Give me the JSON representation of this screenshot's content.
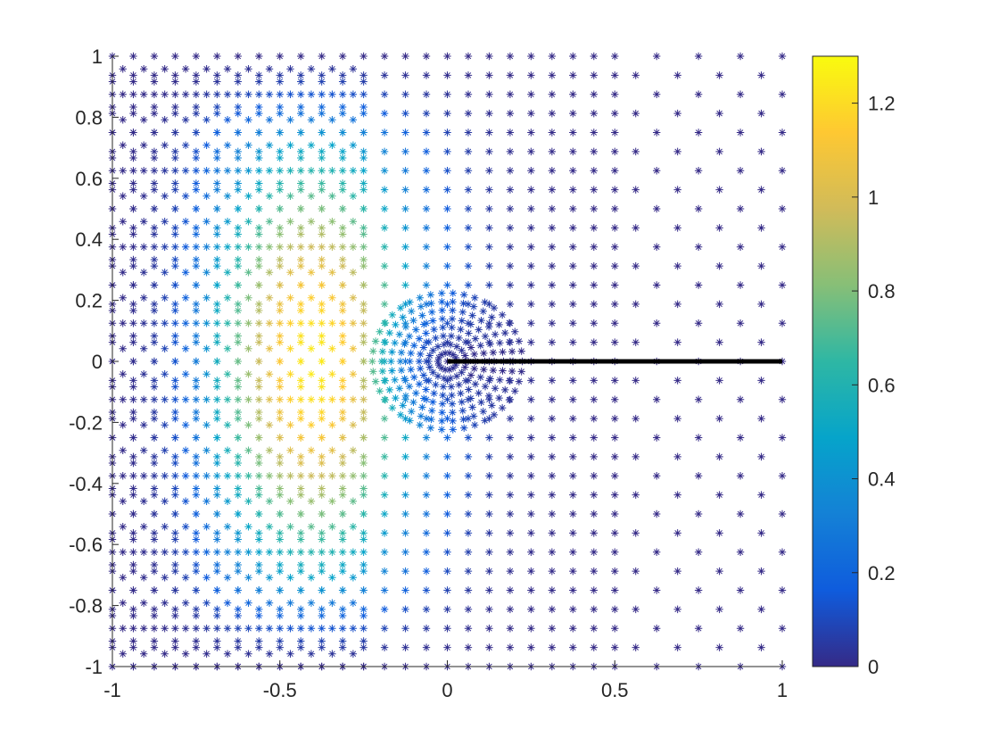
{
  "chart_data": {
    "type": "scatter",
    "title": "",
    "xlabel": "",
    "ylabel": "",
    "xlim": [
      -1,
      1
    ],
    "ylim": [
      -1,
      1
    ],
    "xticks": [
      -1,
      -0.5,
      0,
      0.5,
      1
    ],
    "yticks": [
      -1,
      -0.8,
      -0.6,
      -0.4,
      -0.2,
      0,
      0.2,
      0.4,
      0.6,
      0.8,
      1
    ],
    "xtick_labels": [
      "-1",
      "-0.5",
      "0",
      "0.5",
      "1"
    ],
    "ytick_labels": [
      "-1",
      "-0.8",
      "-0.6",
      "-0.4",
      "-0.2",
      "0",
      "0.2",
      "0.4",
      "0.6",
      "0.8",
      "1"
    ],
    "marker": "asterisk",
    "grid": false,
    "colorbar": {
      "position": "right",
      "colormap": "parula",
      "range": [
        0,
        1.3
      ],
      "ticks": [
        0,
        0.2,
        0.4,
        0.6,
        0.8,
        1,
        1.2
      ],
      "tick_labels": [
        "0",
        "0.2",
        "0.4",
        "0.6",
        "0.8",
        "1",
        "1.2"
      ],
      "stops": [
        "#352a87",
        "#0f5cdd",
        "#1481d6",
        "#06a4ca",
        "#2eb7a4",
        "#87bf77",
        "#d1bb59",
        "#fec832",
        "#f9fb0e"
      ]
    },
    "line_segment": {
      "x": [
        0,
        1
      ],
      "y": [
        0,
        0
      ],
      "color": "#000000"
    },
    "field": {
      "description_of_value": "value peaks near 1.25 at x≈-0.4, zero at the slit tip (0,0) and along the domain boundary",
      "peak_value": 1.25,
      "peak_x": -0.4
    }
  }
}
